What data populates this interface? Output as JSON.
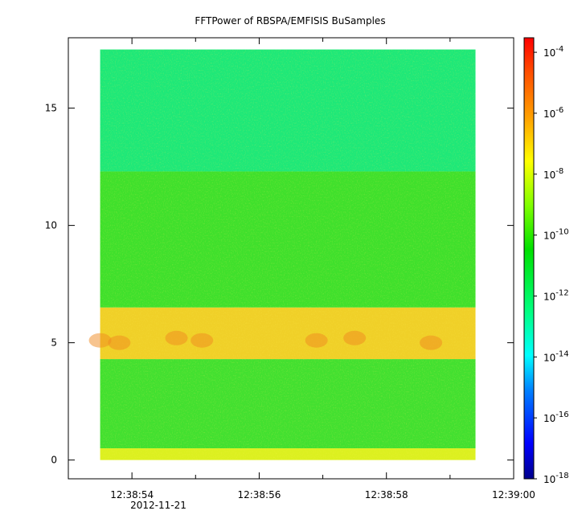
{
  "chart_data": {
    "type": "heatmap",
    "title": "FFTPower of RBSPA/EMFISIS  BuSamples",
    "xlabel": "",
    "ylabel": "",
    "x_range": [
      "12:38:53.0",
      "12:39:00.0"
    ],
    "data_x_range": [
      "12:38:53.5",
      "12:38:59.4"
    ],
    "x_ticks": [
      "12:38:54",
      "12:38:56",
      "12:38:58",
      "12:39:00"
    ],
    "x_sub_label": "2012-11-21",
    "ylim": [
      -0.8,
      18.0
    ],
    "data_y_range": [
      0,
      17.5
    ],
    "y_ticks": [
      0,
      5,
      10,
      15
    ],
    "colorbar": {
      "scale": "log",
      "range": [
        "1e-18",
        "3e-4"
      ],
      "tick_exponents": [
        -18,
        -16,
        -14,
        -12,
        -10,
        -8,
        -6,
        -4
      ],
      "tick_base": "10",
      "colors": [
        "#00008b",
        "#0000ff",
        "#0080ff",
        "#00ffff",
        "#00ff80",
        "#00e000",
        "#80ff00",
        "#ffff00",
        "#ffa000",
        "#ff5000",
        "#ff0000"
      ]
    },
    "bands": [
      {
        "y_from": 12.3,
        "y_to": 17.5,
        "level": -12.8,
        "color": "#1ee878"
      },
      {
        "y_from": 6.5,
        "y_to": 12.3,
        "level": -10.3,
        "color": "#3fe02c"
      },
      {
        "y_from": 4.3,
        "y_to": 6.5,
        "level": -8.0,
        "color": "#f0d028"
      },
      {
        "y_from": 0.5,
        "y_to": 4.3,
        "level": -10.3,
        "color": "#42e030"
      },
      {
        "y_from": 0.0,
        "y_to": 0.5,
        "level": -8.5,
        "color": "#dcf020"
      }
    ]
  }
}
